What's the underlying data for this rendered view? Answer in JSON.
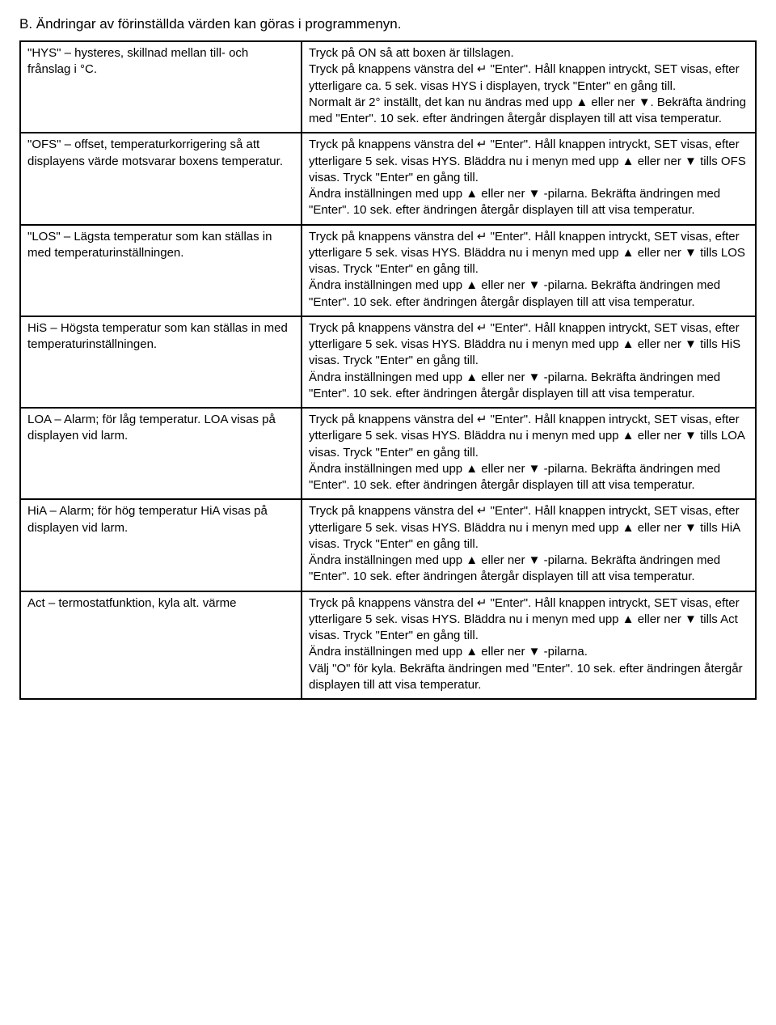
{
  "heading": "B. Ändringar av förinställda värden kan göras i programmenyn.",
  "rows": [
    {
      "left": "\"HYS\" – hysteres, skillnad mellan till- och frånslag i °C.",
      "right": "Tryck på ON så att boxen är tillslagen.\nTryck på knappens vänstra del ↵ \"Enter\". Håll knappen intryckt, SET visas, efter ytterligare ca. 5 sek. visas HYS i displayen, tryck \"Enter\" en gång till.\nNormalt är 2° inställt, det kan nu ändras med upp ▲ eller ner ▼. Bekräfta ändring med \"Enter\". 10 sek. efter ändringen återgår displayen till att visa temperatur."
    },
    {
      "left": "\"OFS\" – offset, temperaturkorrigering så att displayens värde motsvarar boxens temperatur.",
      "right": "Tryck på knappens vänstra del ↵ \"Enter\". Håll knappen intryckt, SET visas, efter ytterligare 5 sek. visas HYS. Bläddra nu i menyn med upp ▲ eller ner ▼ tills OFS visas. Tryck \"Enter\" en gång till.\nÄndra inställningen med upp ▲ eller ner ▼ -pilarna. Bekräfta ändringen med \"Enter\". 10 sek. efter ändringen återgår displayen till att visa temperatur."
    },
    {
      "left": "\"LOS\" – Lägsta temperatur som kan ställas in med temperaturinställningen.",
      "right": "Tryck på knappens vänstra del ↵ \"Enter\". Håll knappen intryckt, SET visas, efter ytterligare 5 sek. visas HYS. Bläddra nu i menyn med upp ▲ eller ner ▼ tills LOS visas. Tryck \"Enter\" en gång till.\nÄndra inställningen med upp ▲ eller ner ▼ -pilarna. Bekräfta ändringen med \"Enter\". 10 sek. efter ändringen återgår displayen till att visa temperatur."
    },
    {
      "left": "HiS – Högsta temperatur som kan ställas in med temperaturinställningen.",
      "right": "Tryck på knappens vänstra del ↵ \"Enter\". Håll knappen intryckt, SET visas, efter ytterligare 5 sek. visas HYS. Bläddra nu i menyn med upp ▲ eller ner ▼ tills HiS visas. Tryck \"Enter\" en gång till.\nÄndra inställningen med upp ▲ eller ner ▼ -pilarna. Bekräfta ändringen med \"Enter\". 10 sek. efter ändringen återgår displayen till att visa temperatur."
    },
    {
      "left": "LOA – Alarm; för låg temperatur. LOA visas på displayen vid larm.",
      "right": "Tryck på knappens vänstra del ↵ \"Enter\". Håll knappen intryckt, SET visas, efter ytterligare 5 sek. visas HYS. Bläddra nu i menyn med upp ▲ eller ner ▼ tills LOA visas. Tryck \"Enter\" en gång till.\nÄndra inställningen med upp ▲ eller ner ▼ -pilarna. Bekräfta ändringen med \"Enter\". 10 sek. efter ändringen återgår displayen till att visa temperatur."
    },
    {
      "left": "HiA – Alarm; för hög temperatur HiA visas på displayen vid larm.",
      "right": "Tryck på knappens vänstra del ↵ \"Enter\". Håll knappen intryckt, SET visas, efter ytterligare 5 sek. visas HYS. Bläddra nu i menyn med upp ▲ eller ner ▼ tills HiA visas. Tryck \"Enter\" en gång till.\nÄndra inställningen med upp ▲ eller ner ▼ -pilarna. Bekräfta ändringen med \"Enter\". 10 sek. efter ändringen återgår displayen till att visa temperatur."
    },
    {
      "left": "Act – termostatfunktion, kyla alt. värme",
      "right": "Tryck på knappens vänstra del ↵ \"Enter\". Håll knappen intryckt, SET visas, efter ytterligare 5 sek. visas HYS. Bläddra nu i menyn med upp ▲ eller ner ▼ tills Act visas. Tryck \"Enter\" en gång till.\nÄndra inställningen med upp ▲ eller ner ▼ -pilarna.\nVälj \"O\" för kyla. Bekräfta ändringen med \"Enter\". 10 sek. efter ändringen återgår displayen till att visa temperatur."
    }
  ]
}
